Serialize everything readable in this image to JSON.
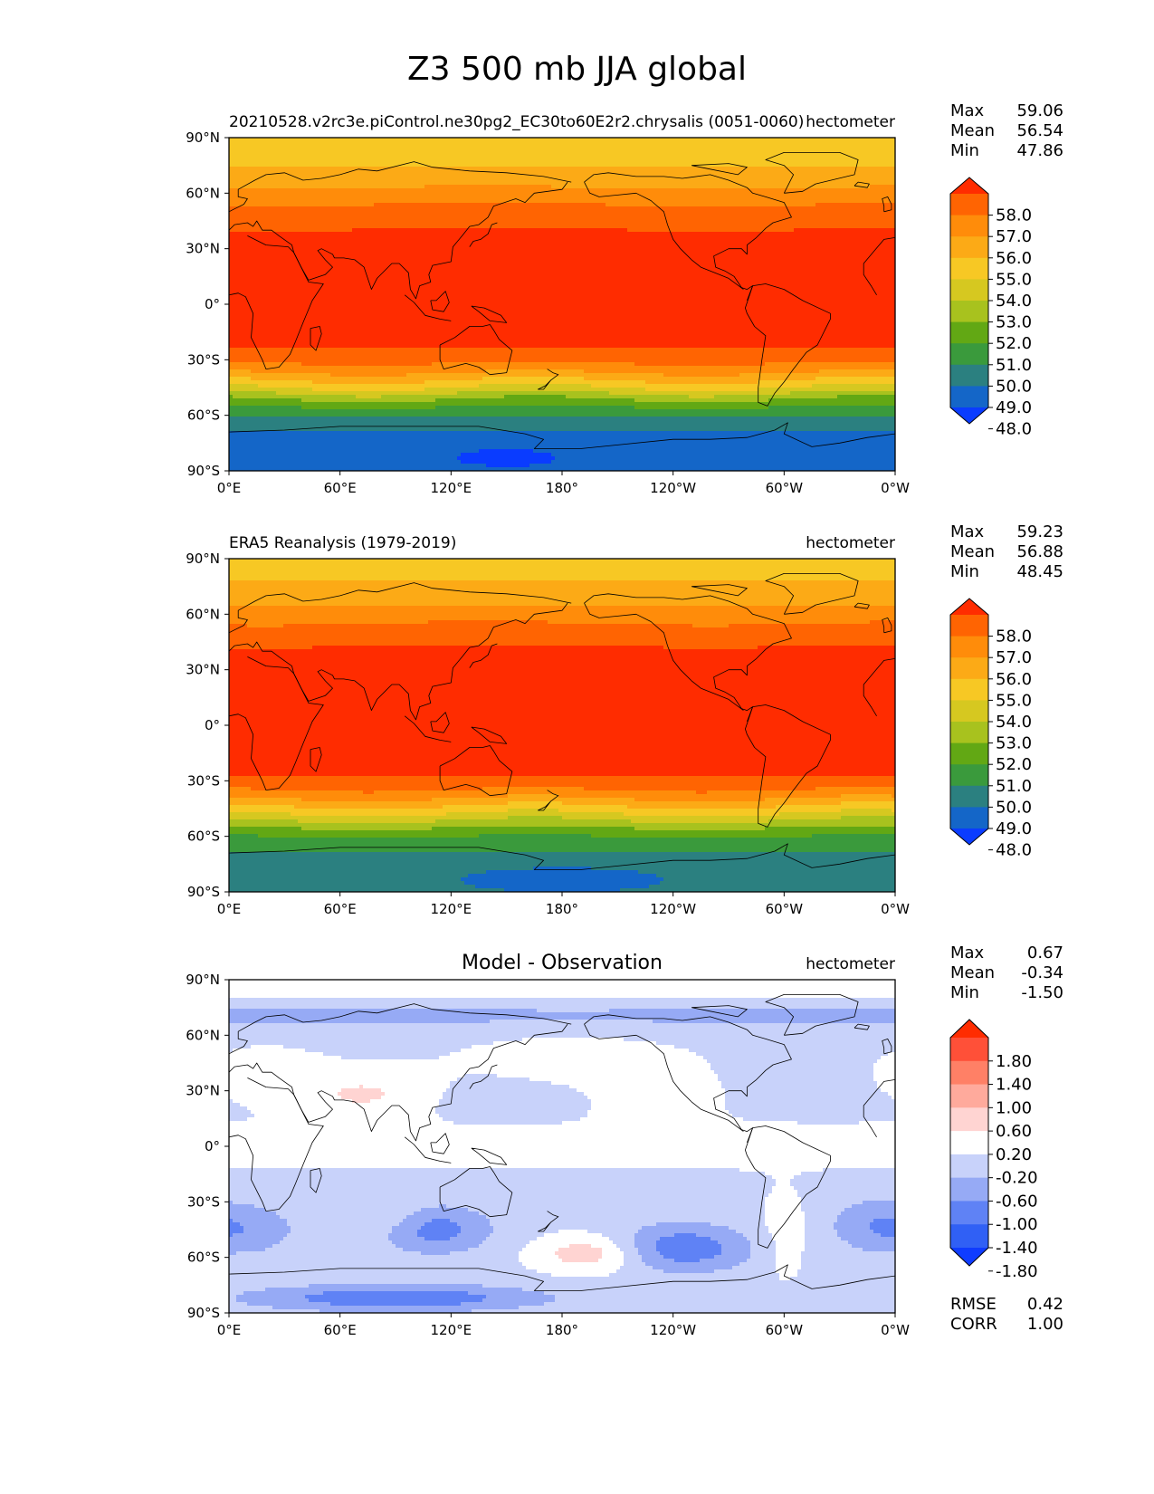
{
  "figure": {
    "title": "Z3 500 mb JJA global"
  },
  "palettes": {
    "field": [
      "#0a3cff",
      "#1466c8",
      "#2b8080",
      "#3a9a3c",
      "#62a814",
      "#a8c21e",
      "#d6c820",
      "#f7c824",
      "#fcaa16",
      "#ff8c0a",
      "#ff6402",
      "#ff2c00"
    ],
    "diff": [
      "#0f3cff",
      "#3060f5",
      "#5f82f5",
      "#96aaf5",
      "#c8d2fa",
      "#ffffff",
      "#ffd4d2",
      "#ffaa9c",
      "#ff8066",
      "#ff5038",
      "#ff2c00"
    ]
  },
  "chart_data": [
    {
      "type": "heatmap",
      "panel": "model",
      "left_title": "20210528.v2rc3e.piControl.ne30pg2_EC30to60E2r2.chrysalis (0051-0060)",
      "center_title": "",
      "right_title": "hectometer",
      "xticks": [
        "0°E",
        "60°E",
        "120°E",
        "180°",
        "120°W",
        "60°W",
        "0°W"
      ],
      "yticks": [
        "90°N",
        "60°N",
        "30°N",
        "0°",
        "30°S",
        "60°S",
        "90°S"
      ],
      "xlim": [
        0,
        360
      ],
      "ylim": [
        -90,
        90
      ],
      "stats": [
        {
          "label": "Max",
          "value": "59.06"
        },
        {
          "label": "Mean",
          "value": "56.54"
        },
        {
          "label": "Min",
          "value": "47.86"
        }
      ],
      "colorbar_levels": [
        "58.0",
        "57.0",
        "56.0",
        "55.0",
        "54.0",
        "53.0",
        "52.0",
        "51.0",
        "50.0",
        "49.0",
        "48.0"
      ],
      "lat_profile": [
        [
          90,
          54.6
        ],
        [
          75,
          55.0
        ],
        [
          65,
          55.8
        ],
        [
          55,
          56.9
        ],
        [
          45,
          57.8
        ],
        [
          38,
          58.1
        ],
        [
          0,
          58.2
        ],
        [
          -22,
          58.1
        ],
        [
          -30,
          57.4
        ],
        [
          -38,
          55.8
        ],
        [
          -45,
          54.0
        ],
        [
          -52,
          51.8
        ],
        [
          -58,
          50.4
        ],
        [
          -64,
          49.6
        ],
        [
          -70,
          48.8
        ],
        [
          -78,
          48.6
        ],
        [
          -90,
          48.6
        ]
      ],
      "min_region": {
        "lon": 150,
        "lat": -83,
        "value": 47.86
      }
    },
    {
      "type": "heatmap",
      "panel": "observation",
      "left_title": "ERA5 Reanalysis (1979-2019)",
      "center_title": "",
      "right_title": "hectometer",
      "xticks": [
        "0°E",
        "60°E",
        "120°E",
        "180°",
        "120°W",
        "60°W",
        "0°W"
      ],
      "yticks": [
        "90°N",
        "60°N",
        "30°N",
        "0°",
        "30°S",
        "60°S",
        "90°S"
      ],
      "xlim": [
        0,
        360
      ],
      "ylim": [
        -90,
        90
      ],
      "stats": [
        {
          "label": "Max",
          "value": "59.23"
        },
        {
          "label": "Mean",
          "value": "56.88"
        },
        {
          "label": "Min",
          "value": "48.45"
        }
      ],
      "colorbar_levels": [
        "58.0",
        "57.0",
        "56.0",
        "55.0",
        "54.0",
        "53.0",
        "52.0",
        "51.0",
        "50.0",
        "49.0",
        "48.0"
      ],
      "lat_profile": [
        [
          90,
          54.6
        ],
        [
          75,
          55.1
        ],
        [
          65,
          56.0
        ],
        [
          55,
          57.0
        ],
        [
          45,
          57.9
        ],
        [
          38,
          58.2
        ],
        [
          0,
          58.3
        ],
        [
          -25,
          58.2
        ],
        [
          -33,
          57.4
        ],
        [
          -40,
          55.9
        ],
        [
          -47,
          54.2
        ],
        [
          -54,
          52.3
        ],
        [
          -60,
          51.0
        ],
        [
          -66,
          50.2
        ],
        [
          -72,
          49.6
        ],
        [
          -80,
          49.5
        ],
        [
          -90,
          49.4
        ]
      ],
      "min_region": {
        "lon": 180,
        "lat": -83,
        "value": 48.45
      }
    },
    {
      "type": "heatmap",
      "panel": "difference",
      "left_title": "",
      "center_title": "Model - Observation",
      "right_title": "hectometer",
      "xticks": [
        "0°E",
        "60°E",
        "120°E",
        "180°",
        "120°W",
        "60°W",
        "0°W"
      ],
      "yticks": [
        "90°N",
        "60°N",
        "30°N",
        "0°",
        "30°S",
        "60°S",
        "90°S"
      ],
      "xlim": [
        0,
        360
      ],
      "ylim": [
        -90,
        90
      ],
      "stats": [
        {
          "label": "Max",
          "value": "0.67"
        },
        {
          "label": "Mean",
          "value": "-0.34"
        },
        {
          "label": "Min",
          "value": "-1.50"
        }
      ],
      "colorbar_levels": [
        "1.80",
        "1.40",
        "1.00",
        "0.60",
        "0.20",
        "-0.20",
        "-0.60",
        "-1.00",
        "-1.40",
        "-1.80"
      ],
      "metrics": [
        {
          "label": "RMSE",
          "value": "0.42"
        },
        {
          "label": "CORR",
          "value": "1.00"
        }
      ]
    }
  ]
}
